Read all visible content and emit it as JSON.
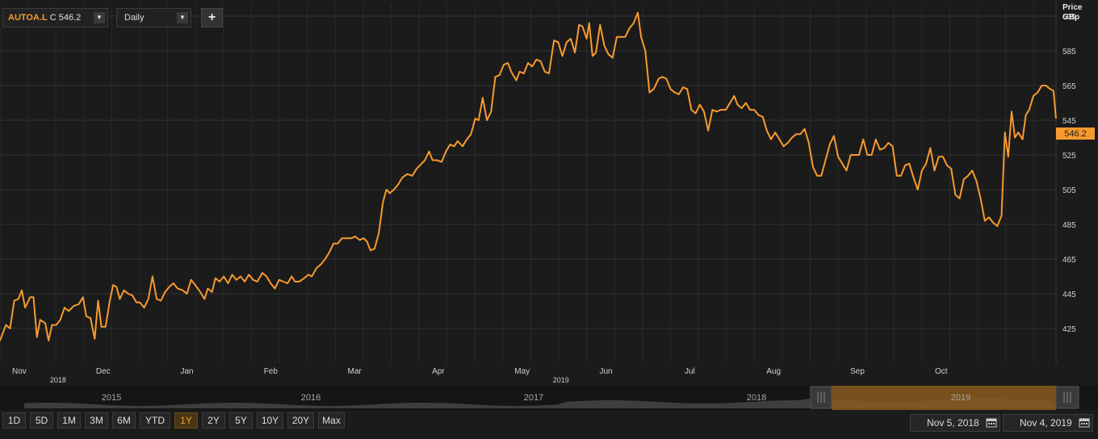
{
  "toolbar": {
    "symbol": "AUTOA.L",
    "last_price_text": "C 546.2",
    "interval": "Daily",
    "add_label": "+"
  },
  "axis": {
    "price_label": "Price",
    "currency_label": "GBp"
  },
  "last_price_tag": "546.2",
  "navigator_years": [
    "2015",
    "2016",
    "2017",
    "2018",
    "2019"
  ],
  "range_buttons": [
    {
      "label": "1D",
      "active": false
    },
    {
      "label": "5D",
      "active": false
    },
    {
      "label": "1M",
      "active": false
    },
    {
      "label": "3M",
      "active": false
    },
    {
      "label": "6M",
      "active": false
    },
    {
      "label": "YTD",
      "active": false
    },
    {
      "label": "1Y",
      "active": true
    },
    {
      "label": "2Y",
      "active": false
    },
    {
      "label": "5Y",
      "active": false
    },
    {
      "label": "10Y",
      "active": false
    },
    {
      "label": "20Y",
      "active": false
    },
    {
      "label": "Max",
      "active": false
    }
  ],
  "date_range": {
    "start": "Nov 5, 2018",
    "end": "Nov 4, 2019"
  },
  "colors": {
    "line": "#f79a2e",
    "background": "#1b1b1b",
    "grid": "#333333",
    "active_range": "#f0a030"
  },
  "chart_data": {
    "type": "line",
    "title": "",
    "xlabel": "",
    "ylabel": "Price GBp",
    "ylim": [
      405,
      612
    ],
    "grid": true,
    "y_ticks": [
      425,
      445,
      465,
      485,
      505,
      525,
      545,
      565,
      585,
      605
    ],
    "x_ticks": [
      {
        "label": "Nov",
        "year": "2018",
        "x": 0.5
      },
      {
        "label": "Dec",
        "x": 1.5
      },
      {
        "label": "Jan",
        "x": 2.5
      },
      {
        "label": "Feb",
        "x": 3.5
      },
      {
        "label": "Mar",
        "x": 4.5
      },
      {
        "label": "Apr",
        "x": 5.5
      },
      {
        "label": "May",
        "year": "2019",
        "x": 6.5
      },
      {
        "label": "Jun",
        "x": 7.5
      },
      {
        "label": "Jul",
        "x": 8.5
      },
      {
        "label": "Aug",
        "x": 9.5
      },
      {
        "label": "Sep",
        "x": 10.5
      },
      {
        "label": "Oct",
        "x": 11.5
      }
    ],
    "x_range": [
      0,
      12.6
    ],
    "series": [
      {
        "values": [
          [
            0.0,
            418
          ],
          [
            0.07,
            427
          ],
          [
            0.12,
            425
          ],
          [
            0.17,
            441
          ],
          [
            0.22,
            442
          ],
          [
            0.26,
            447
          ],
          [
            0.3,
            437
          ],
          [
            0.36,
            443
          ],
          [
            0.4,
            443
          ],
          [
            0.44,
            420
          ],
          [
            0.48,
            430
          ],
          [
            0.54,
            428
          ],
          [
            0.58,
            418
          ],
          [
            0.62,
            427
          ],
          [
            0.67,
            427
          ],
          [
            0.72,
            430
          ],
          [
            0.77,
            437
          ],
          [
            0.82,
            435
          ],
          [
            0.88,
            438
          ],
          [
            0.94,
            439
          ],
          [
            0.99,
            443
          ],
          [
            1.03,
            432
          ],
          [
            1.08,
            431
          ],
          [
            1.13,
            419
          ],
          [
            1.17,
            441
          ],
          [
            1.21,
            426
          ],
          [
            1.26,
            426
          ],
          [
            1.31,
            441
          ],
          [
            1.35,
            450
          ],
          [
            1.39,
            449
          ],
          [
            1.43,
            442
          ],
          [
            1.48,
            447
          ],
          [
            1.53,
            445
          ],
          [
            1.58,
            444
          ],
          [
            1.63,
            440
          ],
          [
            1.67,
            440
          ],
          [
            1.72,
            437
          ],
          [
            1.77,
            442
          ],
          [
            1.82,
            455
          ],
          [
            1.87,
            442
          ],
          [
            1.92,
            441
          ],
          [
            1.97,
            446
          ],
          [
            2.02,
            449
          ],
          [
            2.07,
            451
          ],
          [
            2.12,
            448
          ],
          [
            2.18,
            447
          ],
          [
            2.23,
            445
          ],
          [
            2.28,
            453
          ],
          [
            2.33,
            450
          ],
          [
            2.39,
            446
          ],
          [
            2.44,
            442
          ],
          [
            2.48,
            448
          ],
          [
            2.53,
            446
          ],
          [
            2.57,
            454
          ],
          [
            2.62,
            452
          ],
          [
            2.67,
            455
          ],
          [
            2.72,
            451
          ],
          [
            2.77,
            456
          ],
          [
            2.82,
            453
          ],
          [
            2.87,
            455
          ],
          [
            2.92,
            452
          ],
          [
            2.97,
            456
          ],
          [
            3.02,
            453
          ],
          [
            3.07,
            452
          ],
          [
            3.13,
            457
          ],
          [
            3.18,
            455
          ],
          [
            3.23,
            451
          ],
          [
            3.28,
            448
          ],
          [
            3.33,
            453
          ],
          [
            3.38,
            452
          ],
          [
            3.43,
            451
          ],
          [
            3.48,
            455
          ],
          [
            3.52,
            452
          ],
          [
            3.57,
            452
          ],
          [
            3.63,
            454
          ],
          [
            3.68,
            456
          ],
          [
            3.72,
            455
          ],
          [
            3.78,
            460
          ],
          [
            3.83,
            462
          ],
          [
            3.88,
            465
          ],
          [
            3.93,
            469
          ],
          [
            3.98,
            474
          ],
          [
            4.03,
            474
          ],
          [
            4.08,
            477
          ],
          [
            4.13,
            477
          ],
          [
            4.19,
            477
          ],
          [
            4.24,
            478
          ],
          [
            4.29,
            476
          ],
          [
            4.34,
            477
          ],
          [
            4.38,
            475
          ],
          [
            4.42,
            470
          ],
          [
            4.47,
            471
          ],
          [
            4.52,
            480
          ],
          [
            4.57,
            498
          ],
          [
            4.61,
            505
          ],
          [
            4.65,
            503
          ],
          [
            4.7,
            505
          ],
          [
            4.75,
            508
          ],
          [
            4.8,
            512
          ],
          [
            4.86,
            514
          ],
          [
            4.92,
            513
          ],
          [
            4.97,
            517
          ],
          [
            5.01,
            519
          ],
          [
            5.07,
            522
          ],
          [
            5.12,
            527
          ],
          [
            5.16,
            522
          ],
          [
            5.21,
            522
          ],
          [
            5.27,
            521
          ],
          [
            5.32,
            527
          ],
          [
            5.37,
            531
          ],
          [
            5.42,
            530
          ],
          [
            5.46,
            533
          ],
          [
            5.52,
            530
          ],
          [
            5.57,
            534
          ],
          [
            5.62,
            537
          ],
          [
            5.67,
            546
          ],
          [
            5.71,
            545
          ],
          [
            5.76,
            558
          ],
          [
            5.81,
            545
          ],
          [
            5.86,
            550
          ],
          [
            5.91,
            570
          ],
          [
            5.96,
            571
          ],
          [
            6.01,
            577
          ],
          [
            6.06,
            578
          ],
          [
            6.1,
            573
          ],
          [
            6.16,
            568
          ],
          [
            6.2,
            573
          ],
          [
            6.25,
            572
          ],
          [
            6.3,
            578
          ],
          [
            6.35,
            576
          ],
          [
            6.4,
            580
          ],
          [
            6.45,
            579
          ],
          [
            6.5,
            573
          ],
          [
            6.55,
            572
          ],
          [
            6.61,
            591
          ],
          [
            6.66,
            590
          ],
          [
            6.71,
            582
          ],
          [
            6.76,
            590
          ],
          [
            6.81,
            592
          ],
          [
            6.86,
            584
          ],
          [
            6.91,
            600
          ],
          [
            6.95,
            599
          ],
          [
            7.0,
            592
          ],
          [
            7.03,
            601
          ],
          [
            7.07,
            582
          ],
          [
            7.11,
            584
          ],
          [
            7.16,
            600
          ],
          [
            7.21,
            588
          ],
          [
            7.26,
            583
          ],
          [
            7.31,
            581
          ],
          [
            7.36,
            593
          ],
          [
            7.41,
            593
          ],
          [
            7.46,
            593
          ],
          [
            7.51,
            598
          ],
          [
            7.56,
            601
          ],
          [
            7.61,
            607
          ],
          [
            7.65,
            593
          ],
          [
            7.7,
            585
          ],
          [
            7.75,
            561
          ],
          [
            7.8,
            563
          ],
          [
            7.86,
            569
          ],
          [
            7.9,
            570
          ],
          [
            7.95,
            569
          ],
          [
            8.0,
            563
          ],
          [
            8.05,
            561
          ],
          [
            8.1,
            560
          ],
          [
            8.15,
            564
          ],
          [
            8.2,
            563
          ],
          [
            8.25,
            551
          ],
          [
            8.3,
            549
          ],
          [
            8.35,
            554
          ],
          [
            8.4,
            550
          ],
          [
            8.45,
            539
          ],
          [
            8.5,
            551
          ],
          [
            8.55,
            550
          ],
          [
            8.6,
            551
          ],
          [
            8.66,
            551
          ],
          [
            8.71,
            555
          ],
          [
            8.76,
            559
          ],
          [
            8.8,
            554
          ],
          [
            8.85,
            552
          ],
          [
            8.9,
            555
          ],
          [
            8.95,
            551
          ],
          [
            9.0,
            551
          ],
          [
            9.05,
            548
          ],
          [
            9.1,
            547
          ],
          [
            9.15,
            539
          ],
          [
            9.2,
            534
          ],
          [
            9.25,
            538
          ],
          [
            9.3,
            534
          ],
          [
            9.35,
            530
          ],
          [
            9.4,
            532
          ],
          [
            9.45,
            535
          ],
          [
            9.5,
            537
          ],
          [
            9.55,
            537
          ],
          [
            9.6,
            540
          ],
          [
            9.65,
            532
          ],
          [
            9.7,
            518
          ],
          [
            9.75,
            513
          ],
          [
            9.8,
            513
          ],
          [
            9.85,
            522
          ],
          [
            9.9,
            531
          ],
          [
            9.95,
            536
          ],
          [
            10.0,
            524
          ],
          [
            10.05,
            520
          ],
          [
            10.1,
            516
          ],
          [
            10.15,
            525
          ],
          [
            10.2,
            525
          ],
          [
            10.25,
            525
          ],
          [
            10.3,
            534
          ],
          [
            10.35,
            525
          ],
          [
            10.4,
            525
          ],
          [
            10.45,
            534
          ],
          [
            10.5,
            528
          ],
          [
            10.55,
            529
          ],
          [
            10.6,
            532
          ],
          [
            10.65,
            530
          ],
          [
            10.7,
            513
          ],
          [
            10.75,
            513
          ],
          [
            10.8,
            519
          ],
          [
            10.85,
            520
          ],
          [
            10.9,
            512
          ],
          [
            10.95,
            505
          ],
          [
            11.0,
            516
          ],
          [
            11.05,
            520
          ],
          [
            11.1,
            529
          ],
          [
            11.15,
            516
          ],
          [
            11.2,
            524
          ],
          [
            11.25,
            524
          ],
          [
            11.3,
            519
          ],
          [
            11.35,
            517
          ],
          [
            11.4,
            502
          ],
          [
            11.45,
            500
          ],
          [
            11.5,
            511
          ],
          [
            11.55,
            513
          ],
          [
            11.6,
            516
          ],
          [
            11.65,
            510
          ],
          [
            11.7,
            500
          ],
          [
            11.75,
            487
          ],
          [
            11.8,
            489
          ],
          [
            11.85,
            486
          ],
          [
            11.9,
            484
          ],
          [
            11.95,
            490
          ],
          [
            11.99,
            538
          ],
          [
            12.03,
            524
          ],
          [
            12.07,
            550
          ],
          [
            12.11,
            535
          ],
          [
            12.15,
            538
          ],
          [
            12.2,
            534
          ],
          [
            12.24,
            548
          ],
          [
            12.28,
            551
          ],
          [
            12.33,
            559
          ],
          [
            12.38,
            561
          ],
          [
            12.43,
            565
          ],
          [
            12.48,
            565
          ],
          [
            12.53,
            563
          ],
          [
            12.57,
            562
          ],
          [
            12.6,
            546
          ]
        ]
      }
    ]
  }
}
